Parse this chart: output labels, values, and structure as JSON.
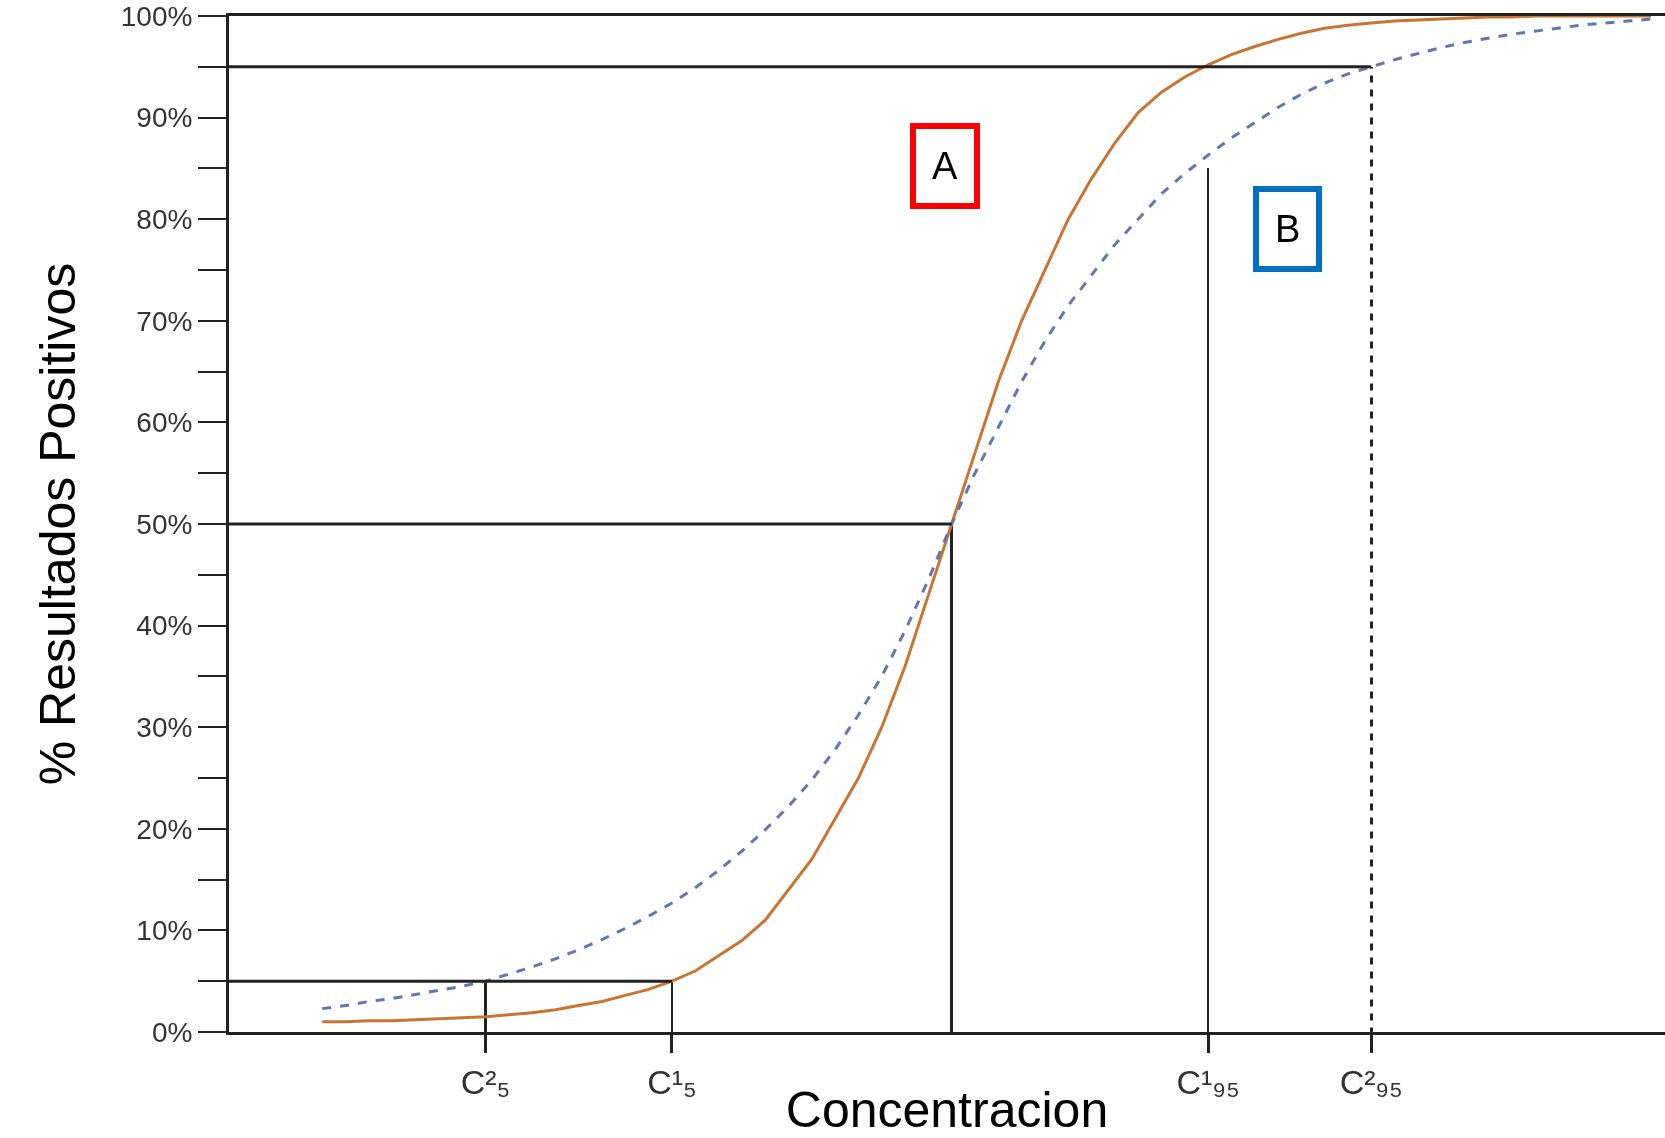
{
  "chart_data": {
    "type": "line",
    "xlabel": "Concentracion",
    "ylabel": "% Resultados Positivos",
    "categories": [
      null,
      null,
      null,
      null,
      null,
      null,
      null,
      null,
      null,
      null,
      null,
      "C²₅",
      null,
      null,
      null,
      null,
      null,
      null,
      null,
      "C¹₅",
      null,
      null,
      null,
      null,
      null,
      null,
      null,
      null,
      null,
      null,
      null,
      null,
      null,
      null,
      null,
      null,
      null,
      null,
      null,
      null,
      null,
      null,
      "C¹₉₅",
      null,
      null,
      null,
      null,
      null,
      null,
      "C²₉₅",
      null,
      null,
      null,
      null,
      null,
      null,
      null,
      null,
      null,
      null,
      null,
      null
    ],
    "ylim": [
      0,
      100
    ],
    "yticks": [
      {
        "value": 0,
        "label": "0%"
      },
      {
        "value": 10,
        "label": "10%"
      },
      {
        "value": 20,
        "label": "20%"
      },
      {
        "value": 30,
        "label": "30%"
      },
      {
        "value": 40,
        "label": "40%"
      },
      {
        "value": 50,
        "label": "50%"
      },
      {
        "value": 60,
        "label": "60%"
      },
      {
        "value": 70,
        "label": "70%"
      },
      {
        "value": 80,
        "label": "80%"
      },
      {
        "value": 90,
        "label": "90%"
      },
      {
        "value": 100,
        "label": "100%"
      }
    ],
    "marker": "none",
    "series": [
      {
        "color": "#c87533",
        "line_style": "solid",
        "values": [
          null,
          null,
          null,
          null,
          1.0,
          1.0,
          1.1,
          1.1,
          1.2,
          1.3,
          1.4,
          1.5,
          1.7,
          1.9,
          2.2,
          2.6,
          3.0,
          3.6,
          4.2,
          5,
          6,
          7.5,
          9,
          11,
          14,
          17,
          21,
          25,
          30,
          36,
          43,
          50,
          57,
          64,
          70,
          75,
          80,
          84,
          87.5,
          90.5,
          92.5,
          94,
          95.2,
          96.2,
          97,
          97.7,
          98.3,
          98.8,
          99.1,
          99.3,
          99.5,
          99.6,
          99.7,
          99.8,
          99.9,
          99.9,
          100,
          100,
          100,
          100,
          100,
          100
        ]
      },
      {
        "color": "#6077b0",
        "line_style": "dashed",
        "values": [
          null,
          null,
          null,
          null,
          2.3,
          2.6,
          3,
          3.3,
          3.7,
          4.1,
          4.5,
          5,
          5.7,
          6.4,
          7.2,
          8.1,
          9.1,
          10.2,
          11.4,
          12.7,
          14.2,
          15.9,
          17.8,
          19.9,
          22.2,
          24.8,
          27.8,
          31.2,
          35,
          39.5,
          44.5,
          50,
          55,
          59.5,
          64,
          68,
          71.5,
          74.5,
          77.5,
          80,
          82.5,
          84.5,
          86.3,
          88,
          89.5,
          91,
          92.3,
          93.4,
          94.3,
          95,
          95.7,
          96.3,
          96.9,
          97.4,
          97.8,
          98.2,
          98.5,
          98.8,
          99.1,
          99.3,
          99.5,
          99.7
        ]
      },
      {
        "color": "#222222",
        "line_style": "solid",
        "values": [
          95,
          95,
          95,
          95,
          95,
          95,
          95,
          95,
          95,
          95,
          95,
          95,
          95,
          95,
          95,
          95,
          95,
          95,
          95,
          95,
          95,
          95,
          95,
          95,
          95,
          95,
          95,
          95,
          95,
          95,
          95,
          95,
          95,
          95,
          95,
          95,
          95,
          95,
          95,
          95,
          95,
          95,
          95,
          95,
          95,
          95,
          95,
          95,
          95,
          95,
          null,
          null,
          null,
          null,
          null,
          null,
          null,
          null,
          null,
          null,
          null,
          null
        ]
      },
      {
        "color": "#222222",
        "line_style": "solid",
        "values": [
          50,
          50,
          50,
          50,
          50,
          50,
          50,
          50,
          50,
          50,
          50,
          50,
          50,
          50,
          50,
          50,
          50,
          50,
          50,
          50,
          50,
          50,
          50,
          50,
          50,
          50,
          50,
          50,
          50,
          50,
          50,
          50,
          null,
          null,
          null,
          null,
          null,
          null,
          null,
          null,
          null,
          null,
          null,
          null,
          null,
          null,
          null,
          null,
          null,
          null,
          null,
          null,
          null,
          null,
          null,
          null,
          null,
          null,
          null,
          null,
          null,
          null
        ]
      },
      {
        "color": "#222222",
        "line_style": "solid",
        "values": [
          5,
          5,
          5,
          5,
          5,
          5,
          5,
          5,
          5,
          5,
          5,
          5,
          5,
          5,
          5,
          5,
          5,
          5,
          5,
          5,
          null,
          null,
          null,
          null,
          null,
          null,
          null,
          null,
          null,
          null,
          null,
          null,
          null,
          null,
          null,
          null,
          null,
          null,
          null,
          null,
          null,
          null,
          null,
          null,
          null,
          null,
          null,
          null,
          null,
          null,
          null,
          null,
          null,
          null,
          null,
          null,
          null,
          null,
          null,
          null,
          null,
          null
        ]
      },
      {
        "type": "bar",
        "color": "#222222",
        "line_style": "solid",
        "values": [
          null,
          null,
          null,
          null,
          null,
          null,
          null,
          null,
          null,
          null,
          null,
          5,
          null,
          null,
          null,
          null,
          null,
          null,
          null,
          5,
          null,
          null,
          null,
          null,
          null,
          null,
          null,
          null,
          null,
          null,
          null,
          50,
          null,
          null,
          null,
          null,
          null,
          null,
          null,
          null,
          null,
          null,
          85,
          null,
          null,
          null,
          null,
          null,
          null,
          null,
          null,
          null,
          null,
          null,
          null,
          null,
          null,
          null,
          null,
          null,
          null,
          null
        ]
      },
      {
        "type": "bar",
        "color": "#222222",
        "line_style": "dashed",
        "values": [
          null,
          null,
          null,
          null,
          null,
          null,
          null,
          null,
          null,
          null,
          null,
          null,
          null,
          null,
          null,
          null,
          null,
          null,
          null,
          null,
          null,
          null,
          null,
          null,
          null,
          null,
          null,
          null,
          null,
          null,
          null,
          null,
          null,
          null,
          null,
          null,
          null,
          null,
          null,
          null,
          null,
          null,
          null,
          null,
          null,
          null,
          null,
          null,
          null,
          95,
          null,
          null,
          null,
          null,
          null,
          null,
          null,
          null,
          null,
          null,
          null,
          null
        ]
      }
    ],
    "annotations": [
      "A",
      "B"
    ]
  }
}
